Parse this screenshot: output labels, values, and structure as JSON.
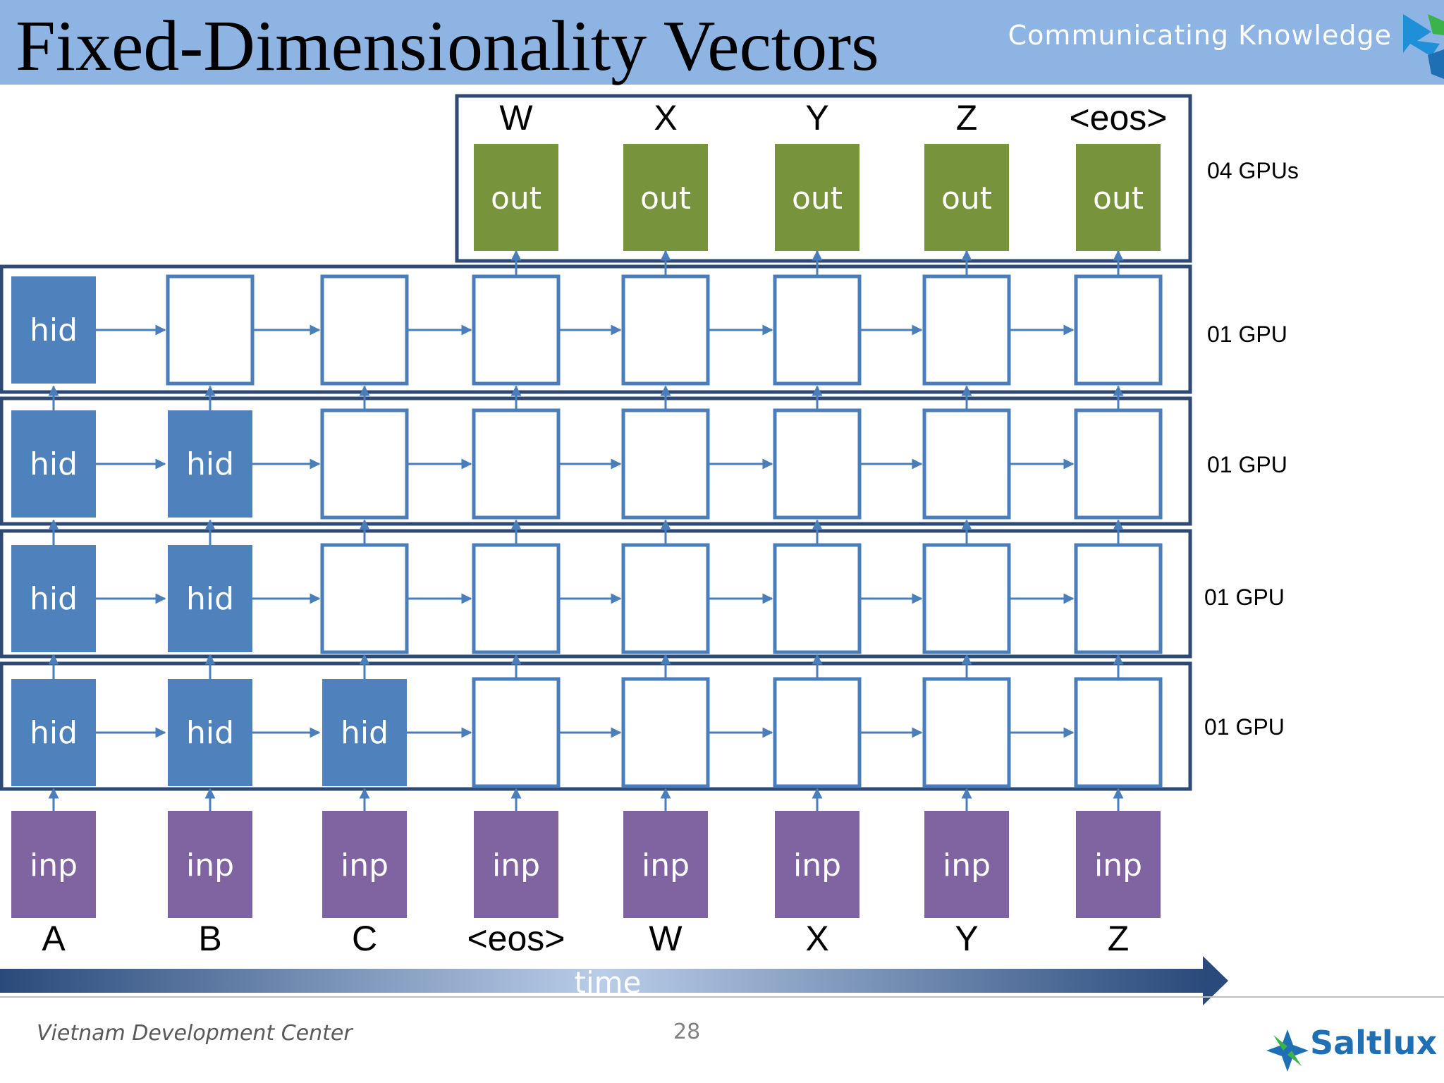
{
  "slide": {
    "title": "Fixed-Dimensionality Vectors",
    "tagline": "Communicating Knowledge",
    "footer_left": "Vietnam Development Center",
    "page_number": "28",
    "brand": "Saltlux"
  },
  "diagram": {
    "output_tokens": [
      "W",
      "X",
      "Y",
      "Z",
      "<eos>"
    ],
    "output_label": "out",
    "hidden_label": "hid",
    "input_label": "inp",
    "input_tokens": [
      "A",
      "B",
      "C",
      "<eos>",
      "W",
      "X",
      "Y",
      "Z"
    ],
    "gpu_labels": [
      "04 GPUs",
      "01 GPU",
      "01 GPU",
      "01 GPU",
      "01 GPU"
    ],
    "time_label": "time",
    "filled_hidden_counts": [
      1,
      2,
      2,
      3
    ],
    "colors": {
      "hidden_fill": "#4f81bd",
      "input_fill": "#8064a2",
      "output_fill": "#77933c",
      "border": "#2e4a74",
      "arrow": "#4a7ebb",
      "header": "#8eb4e3"
    }
  }
}
